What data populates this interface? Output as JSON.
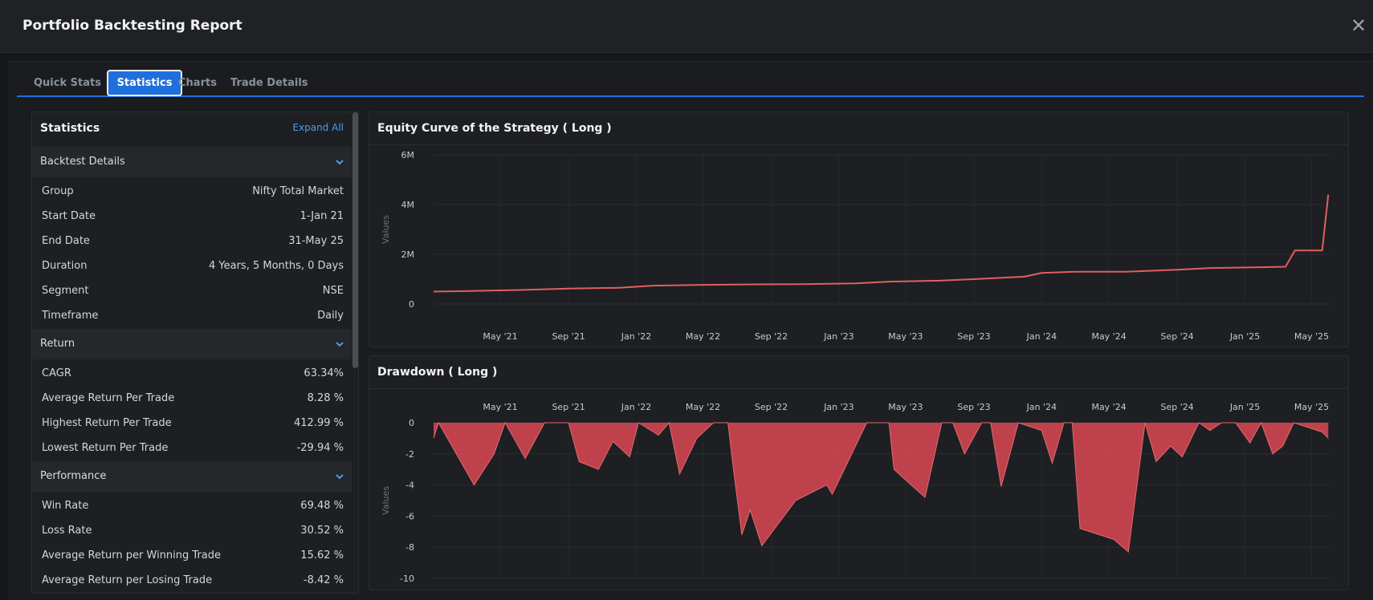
{
  "header": {
    "title": "Portfolio Backtesting Report",
    "close_label": "✕"
  },
  "tabs": [
    {
      "label": "Quick Stats",
      "active": false
    },
    {
      "label": "Statistics",
      "active": true
    },
    {
      "label": "Charts",
      "active": false
    },
    {
      "label": "Trade Details",
      "active": false
    }
  ],
  "stats": {
    "title": "Statistics",
    "expand_all": "Expand All",
    "sections": [
      {
        "title": "Backtest Details",
        "rows": [
          {
            "label": "Group",
            "value": "Nifty Total Market"
          },
          {
            "label": "Start Date",
            "value": "1-Jan 21"
          },
          {
            "label": "End Date",
            "value": "31-May 25"
          },
          {
            "label": "Duration",
            "value": "4 Years, 5 Months, 0 Days"
          },
          {
            "label": "Segment",
            "value": "NSE"
          },
          {
            "label": "Timeframe",
            "value": "Daily"
          }
        ]
      },
      {
        "title": "Return",
        "rows": [
          {
            "label": "CAGR",
            "value": "63.34%"
          },
          {
            "label": "Average Return Per Trade",
            "value": "8.28 %"
          },
          {
            "label": "Highest Return Per Trade",
            "value": "412.99 %"
          },
          {
            "label": "Lowest Return Per Trade",
            "value": "-29.94 %"
          }
        ]
      },
      {
        "title": "Performance",
        "rows": [
          {
            "label": "Win Rate",
            "value": "69.48 %"
          },
          {
            "label": "Loss Rate",
            "value": "30.52 %"
          },
          {
            "label": "Average Return per Winning Trade",
            "value": "15.62 %"
          },
          {
            "label": "Average Return per Losing Trade",
            "value": "-8.42 %"
          }
        ]
      }
    ]
  },
  "colors": {
    "accent": "#1f6fdc",
    "link": "#4a9cf0",
    "series_line": "#e0605e",
    "series_fill": "#c8434f"
  },
  "chart_data": [
    {
      "type": "line",
      "title": "Equity Curve of the Strategy ( Long )",
      "ylabel": "Values",
      "y_ticks": [
        "6M",
        "4M",
        "2M",
        "0"
      ],
      "ylim": [
        0,
        6000000
      ],
      "x_ticks": [
        "May '21",
        "Sep '21",
        "Jan '22",
        "May '22",
        "Sep '22",
        "Jan '23",
        "May '23",
        "Sep '23",
        "Jan '24",
        "May '24",
        "Sep '24",
        "Jan '25",
        "May '25"
      ],
      "x_tick_dates": [
        "2021-05-01",
        "2021-09-01",
        "2022-01-01",
        "2022-05-01",
        "2022-09-01",
        "2023-01-01",
        "2023-05-01",
        "2023-09-01",
        "2024-01-01",
        "2024-05-01",
        "2024-09-01",
        "2025-01-01",
        "2025-05-01"
      ],
      "grid": true,
      "series": [
        {
          "points": [
            [
              "2021-01-01",
              500000
            ],
            [
              "2021-03-01",
              520000
            ],
            [
              "2021-06-01",
              560000
            ],
            [
              "2021-09-01",
              620000
            ],
            [
              "2021-12-01",
              650000
            ],
            [
              "2022-02-01",
              740000
            ],
            [
              "2022-05-01",
              770000
            ],
            [
              "2022-08-01",
              790000
            ],
            [
              "2022-11-01",
              800000
            ],
            [
              "2023-02-01",
              830000
            ],
            [
              "2023-04-01",
              900000
            ],
            [
              "2023-07-01",
              940000
            ],
            [
              "2023-09-01",
              1000000
            ],
            [
              "2023-12-01",
              1100000
            ],
            [
              "2024-01-01",
              1250000
            ],
            [
              "2024-03-01",
              1300000
            ],
            [
              "2024-06-01",
              1300000
            ],
            [
              "2024-09-01",
              1380000
            ],
            [
              "2024-11-01",
              1450000
            ],
            [
              "2025-02-01",
              1480000
            ],
            [
              "2025-03-15",
              1500000
            ],
            [
              "2025-04-01",
              2150000
            ],
            [
              "2025-05-20",
              2150000
            ],
            [
              "2025-05-31",
              4400000
            ]
          ]
        }
      ]
    },
    {
      "type": "area",
      "title": "Drawdown ( Long )",
      "ylabel": "Values",
      "y_ticks": [
        "0",
        "-2",
        "-4",
        "-6",
        "-8",
        "-10"
      ],
      "ylim": [
        -10,
        0
      ],
      "x_ticks": [
        "May '21",
        "Sep '21",
        "Jan '22",
        "May '22",
        "Sep '22",
        "Jan '23",
        "May '23",
        "Sep '23",
        "Jan '24",
        "May '24",
        "Sep '24",
        "Jan '25",
        "May '25"
      ],
      "x_tick_dates": [
        "2021-05-01",
        "2021-09-01",
        "2022-01-01",
        "2022-05-01",
        "2022-09-01",
        "2023-01-01",
        "2023-05-01",
        "2023-09-01",
        "2024-01-01",
        "2024-05-01",
        "2024-09-01",
        "2025-01-01",
        "2025-05-01"
      ],
      "grid": true,
      "series": [
        {
          "points": [
            [
              "2021-01-01",
              -1.0
            ],
            [
              "2021-01-10",
              0
            ],
            [
              "2021-03-15",
              -4.0
            ],
            [
              "2021-04-20",
              -2.0
            ],
            [
              "2021-05-10",
              0
            ],
            [
              "2021-06-15",
              -2.3
            ],
            [
              "2021-07-20",
              0
            ],
            [
              "2021-09-01",
              0
            ],
            [
              "2021-09-20",
              -2.5
            ],
            [
              "2021-10-25",
              -3.0
            ],
            [
              "2021-11-20",
              -1.2
            ],
            [
              "2021-12-20",
              -2.2
            ],
            [
              "2022-01-05",
              0
            ],
            [
              "2022-02-10",
              -0.8
            ],
            [
              "2022-03-01",
              0
            ],
            [
              "2022-03-20",
              -3.3
            ],
            [
              "2022-04-20",
              -1.0
            ],
            [
              "2022-05-20",
              0
            ],
            [
              "2022-06-15",
              0
            ],
            [
              "2022-06-25",
              -3.0
            ],
            [
              "2022-07-10",
              -7.2
            ],
            [
              "2022-07-25",
              -5.6
            ],
            [
              "2022-08-15",
              -7.9
            ],
            [
              "2022-10-15",
              -5.0
            ],
            [
              "2022-12-10",
              -4.0
            ],
            [
              "2022-12-20",
              -4.6
            ],
            [
              "2023-02-20",
              0
            ],
            [
              "2023-04-01",
              0
            ],
            [
              "2023-04-10",
              -3.0
            ],
            [
              "2023-06-05",
              -4.8
            ],
            [
              "2023-07-05",
              0
            ],
            [
              "2023-07-25",
              0
            ],
            [
              "2023-08-15",
              -2.0
            ],
            [
              "2023-09-15",
              0
            ],
            [
              "2023-10-01",
              0
            ],
            [
              "2023-10-20",
              -4.1
            ],
            [
              "2023-11-20",
              0
            ],
            [
              "2024-01-01",
              -0.5
            ],
            [
              "2024-01-20",
              -2.6
            ],
            [
              "2024-02-10",
              0
            ],
            [
              "2024-02-25",
              0
            ],
            [
              "2024-03-10",
              -6.8
            ],
            [
              "2024-05-10",
              -7.5
            ],
            [
              "2024-06-05",
              -8.3
            ],
            [
              "2024-07-05",
              0
            ],
            [
              "2024-07-25",
              -2.5
            ],
            [
              "2024-08-20",
              -1.5
            ],
            [
              "2024-09-10",
              -2.2
            ],
            [
              "2024-10-10",
              0
            ],
            [
              "2024-10-30",
              -0.5
            ],
            [
              "2024-11-20",
              0
            ],
            [
              "2024-12-15",
              0
            ],
            [
              "2025-01-10",
              -1.3
            ],
            [
              "2025-01-30",
              0
            ],
            [
              "2025-02-20",
              -2.0
            ],
            [
              "2025-03-10",
              -1.5
            ],
            [
              "2025-03-30",
              0
            ],
            [
              "2025-05-20",
              -0.6
            ],
            [
              "2025-05-31",
              -1.0
            ]
          ]
        }
      ]
    }
  ]
}
